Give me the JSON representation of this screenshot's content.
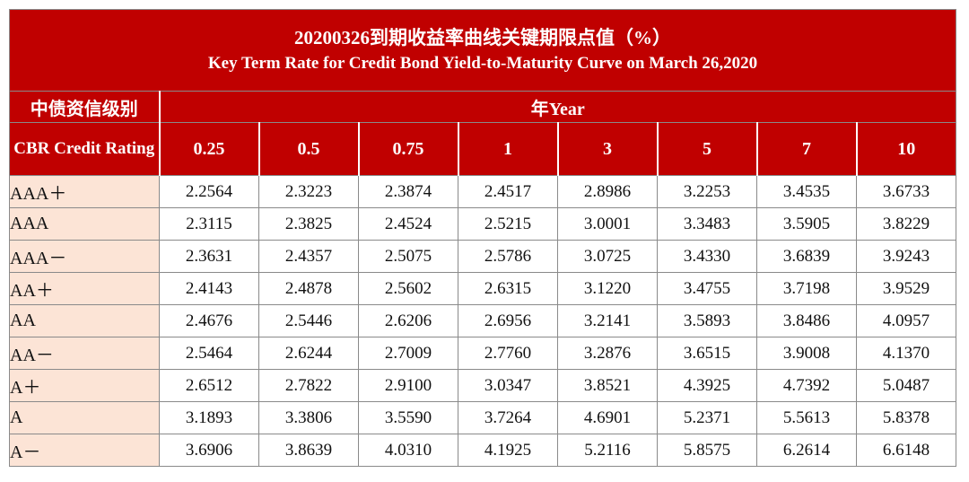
{
  "title": {
    "cn": "20200326到期收益率曲线关键期限点值（%）",
    "en": "Key Term Rate for Credit Bond Yield-to-Maturity Curve on March 26,2020"
  },
  "header": {
    "rating_cn": "中债资信级别",
    "rating_en": "CBR Credit Rating",
    "year": "年Year",
    "terms": [
      "0.25",
      "0.5",
      "0.75",
      "1",
      "3",
      "5",
      "7",
      "10"
    ]
  },
  "rows": [
    {
      "rating": "AAA＋",
      "values": [
        "2.2564",
        "2.3223",
        "2.3874",
        "2.4517",
        "2.8986",
        "3.2253",
        "3.4535",
        "3.6733"
      ]
    },
    {
      "rating": "AAA",
      "values": [
        "2.3115",
        "2.3825",
        "2.4524",
        "2.5215",
        "3.0001",
        "3.3483",
        "3.5905",
        "3.8229"
      ]
    },
    {
      "rating": "AAA－",
      "values": [
        "2.3631",
        "2.4357",
        "2.5075",
        "2.5786",
        "3.0725",
        "3.4330",
        "3.6839",
        "3.9243"
      ]
    },
    {
      "rating": "AA＋",
      "values": [
        "2.4143",
        "2.4878",
        "2.5602",
        "2.6315",
        "3.1220",
        "3.4755",
        "3.7198",
        "3.9529"
      ]
    },
    {
      "rating": "AA",
      "values": [
        "2.4676",
        "2.5446",
        "2.6206",
        "2.6956",
        "3.2141",
        "3.5893",
        "3.8486",
        "4.0957"
      ]
    },
    {
      "rating": "AA－",
      "values": [
        "2.5464",
        "2.6244",
        "2.7009",
        "2.7760",
        "3.2876",
        "3.6515",
        "3.9008",
        "4.1370"
      ]
    },
    {
      "rating": "A＋",
      "values": [
        "2.6512",
        "2.7822",
        "2.9100",
        "3.0347",
        "3.8521",
        "4.3925",
        "4.7392",
        "5.0487"
      ]
    },
    {
      "rating": "A",
      "values": [
        "3.1893",
        "3.3806",
        "3.5590",
        "3.7264",
        "4.6901",
        "5.2371",
        "5.5613",
        "5.8378"
      ]
    },
    {
      "rating": "A－",
      "values": [
        "3.6906",
        "3.8639",
        "4.0310",
        "4.1925",
        "5.2116",
        "5.8575",
        "6.2614",
        "6.6148"
      ]
    }
  ],
  "colors": {
    "header_red": "#c00000",
    "rating_bg": "#fce4d6",
    "value_bg": "#ffffff"
  }
}
